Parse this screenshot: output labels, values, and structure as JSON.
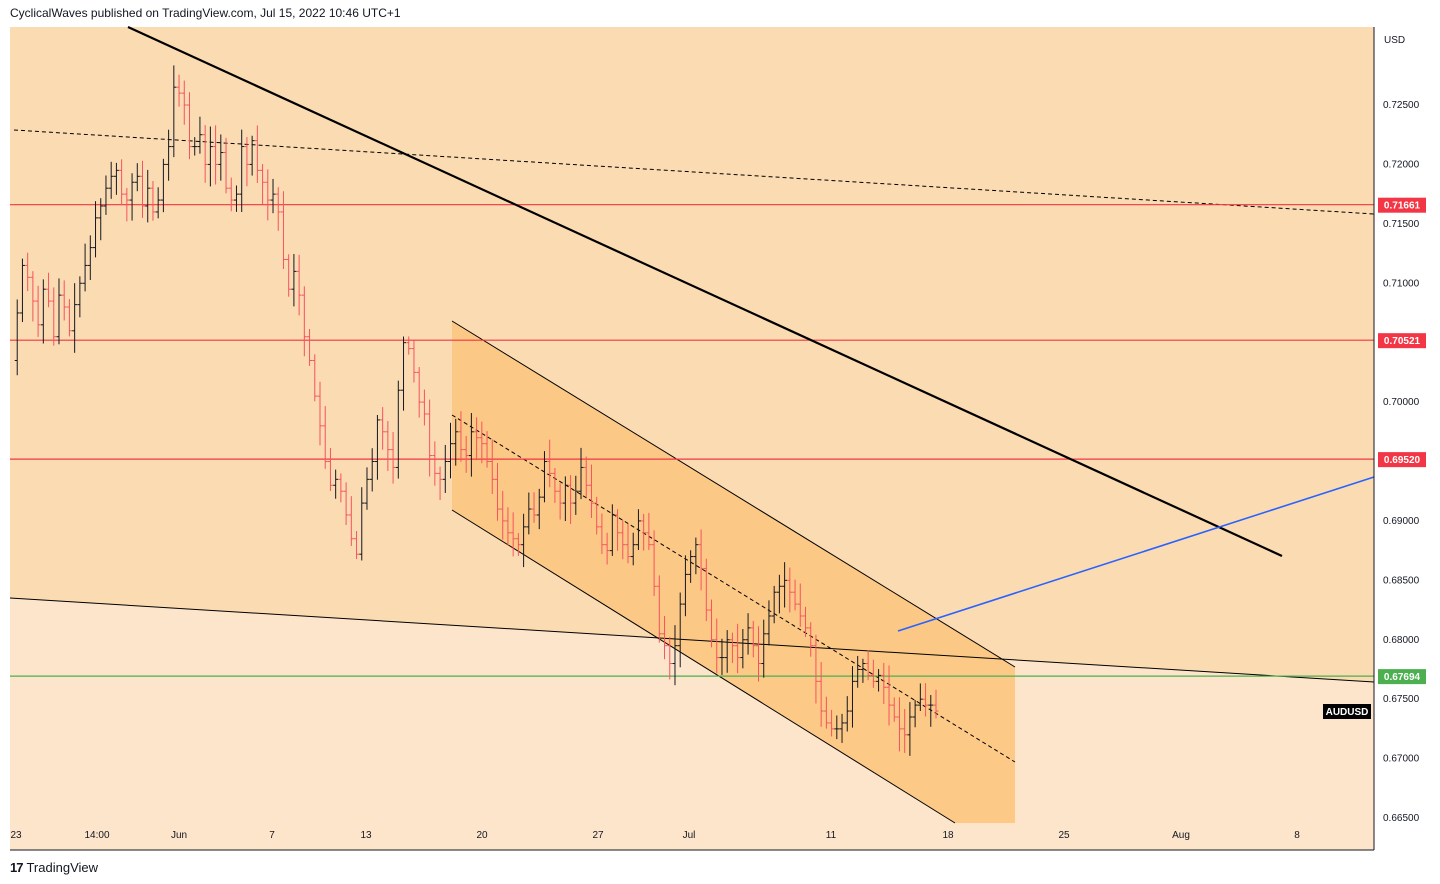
{
  "header": {
    "publish_line": "CyclicalWaves published on TradingView.com, Jul 15, 2022 10:46 UTC+1"
  },
  "footer": {
    "logo_mark": "17",
    "brand": "TradingView"
  },
  "chart_data": {
    "type": "candlestick",
    "symbol": "AUDUSD",
    "currency": "USD",
    "y_range": [
      0.6645,
      0.7305
    ],
    "y_ticks": [
      "0.72500",
      "0.72000",
      "0.71500",
      "0.71000",
      "0.70500",
      "0.70000",
      "0.69500",
      "0.69000",
      "0.68500",
      "0.68000",
      "0.67500",
      "0.67000",
      "0.66500"
    ],
    "x_ticks": [
      "23",
      "14:00",
      "Jun",
      "7",
      "13",
      "20",
      "27",
      "Jul",
      "11",
      "18",
      "25",
      "Aug",
      "8"
    ],
    "level_lines": [
      {
        "value": 0.71661,
        "label": "0.71661",
        "color": "#f23645"
      },
      {
        "value": 0.70521,
        "label": "0.70521",
        "color": "#f23645"
      },
      {
        "value": 0.6952,
        "label": "0.69520",
        "color": "#f23645"
      },
      {
        "value": 0.67694,
        "label": "0.67694",
        "color": "#4caf50"
      }
    ],
    "symbol_tag": "AUDUSD",
    "colors": {
      "background_upper": "#fbdbb2",
      "background_lower": "#fce5cb",
      "channel_fill": "#fcc57f",
      "candle_up": "#131722",
      "candle_down": "#f7525f",
      "trendline_main": "#000000",
      "trendline_blue": "#2962ff"
    },
    "price_path": [
      0.7035,
      0.7075,
      0.7115,
      0.7105,
      0.7085,
      0.7065,
      0.7095,
      0.7085,
      0.7055,
      0.709,
      0.708,
      0.706,
      0.7082,
      0.71,
      0.7115,
      0.713,
      0.7155,
      0.7165,
      0.718,
      0.719,
      0.7195,
      0.7175,
      0.717,
      0.7185,
      0.719,
      0.7165,
      0.718,
      0.716,
      0.717,
      0.72,
      0.7215,
      0.7265,
      0.726,
      0.725,
      0.7215,
      0.7215,
      0.7225,
      0.72,
      0.7215,
      0.72,
      0.721,
      0.718,
      0.717,
      0.7175,
      0.7215,
      0.72,
      0.722,
      0.7195,
      0.7185,
      0.717,
      0.7175,
      0.716,
      0.712,
      0.7095,
      0.711,
      0.709,
      0.7055,
      0.7035,
      0.7005,
      0.698,
      0.695,
      0.693,
      0.6935,
      0.6925,
      0.6905,
      0.6885,
      0.6872,
      0.6915,
      0.6935,
      0.695,
      0.6985,
      0.6975,
      0.696,
      0.6945,
      0.701,
      0.705,
      0.7045,
      0.7025,
      0.7,
      0.699,
      0.6955,
      0.694,
      0.6935,
      0.695,
      0.6965,
      0.6975,
      0.696,
      0.6955,
      0.6975,
      0.697,
      0.6965,
      0.695,
      0.6935,
      0.691,
      0.69,
      0.689,
      0.6885,
      0.688,
      0.6895,
      0.691,
      0.6905,
      0.692,
      0.695,
      0.694,
      0.6925,
      0.6915,
      0.693,
      0.6915,
      0.6925,
      0.6945,
      0.693,
      0.6915,
      0.6895,
      0.688,
      0.6875,
      0.6905,
      0.689,
      0.688,
      0.687,
      0.688,
      0.69,
      0.689,
      0.688,
      0.6845,
      0.6805,
      0.6795,
      0.678,
      0.6795,
      0.683,
      0.6855,
      0.687,
      0.688,
      0.686,
      0.6825,
      0.68,
      0.6785,
      0.6785,
      0.68,
      0.6795,
      0.6785,
      0.68,
      0.681,
      0.6795,
      0.678,
      0.6805,
      0.682,
      0.684,
      0.6845,
      0.685,
      0.684,
      0.683,
      0.682,
      0.681,
      0.6795,
      0.6765,
      0.674,
      0.673,
      0.6725,
      0.6725,
      0.673,
      0.674,
      0.6765,
      0.6775,
      0.678,
      0.677,
      0.6765,
      0.677,
      0.676,
      0.6745,
      0.6735,
      0.6725,
      0.672,
      0.6735,
      0.6745,
      0.675,
      0.6745,
      0.6745,
      0.674
    ]
  }
}
